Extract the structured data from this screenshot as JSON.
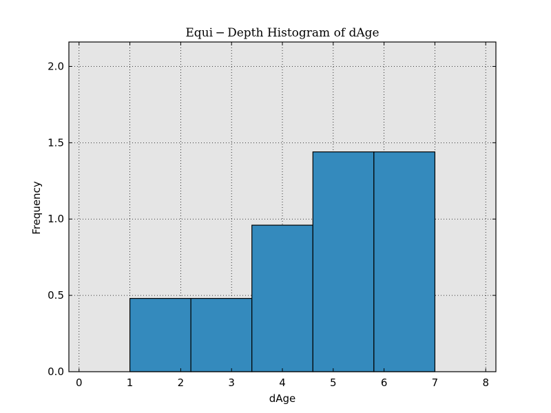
{
  "chart_data": {
    "type": "bar",
    "title": "Equi − Depth Histogram of dAge",
    "xlabel": "dAge",
    "ylabel": "Frequency",
    "xlim": [
      -0.2,
      8.2
    ],
    "ylim": [
      0,
      2.16
    ],
    "xticks": [
      0,
      1,
      2,
      3,
      4,
      5,
      6,
      7,
      8
    ],
    "yticks": [
      0.0,
      0.5,
      1.0,
      1.5,
      2.0
    ],
    "ytick_labels": [
      "0.0",
      "0.5",
      "1.0",
      "1.5",
      "2.0"
    ],
    "grid": true,
    "bins": [
      {
        "start": 1.0,
        "end": 2.2,
        "value": 0.48
      },
      {
        "start": 2.2,
        "end": 3.4,
        "value": 0.48
      },
      {
        "start": 3.4,
        "end": 4.6,
        "value": 0.96
      },
      {
        "start": 4.6,
        "end": 5.8,
        "value": 1.44
      },
      {
        "start": 5.8,
        "end": 7.0,
        "value": 1.44
      }
    ],
    "colors": {
      "bar": "#348abd",
      "plot_background": "#e5e5e5"
    }
  }
}
